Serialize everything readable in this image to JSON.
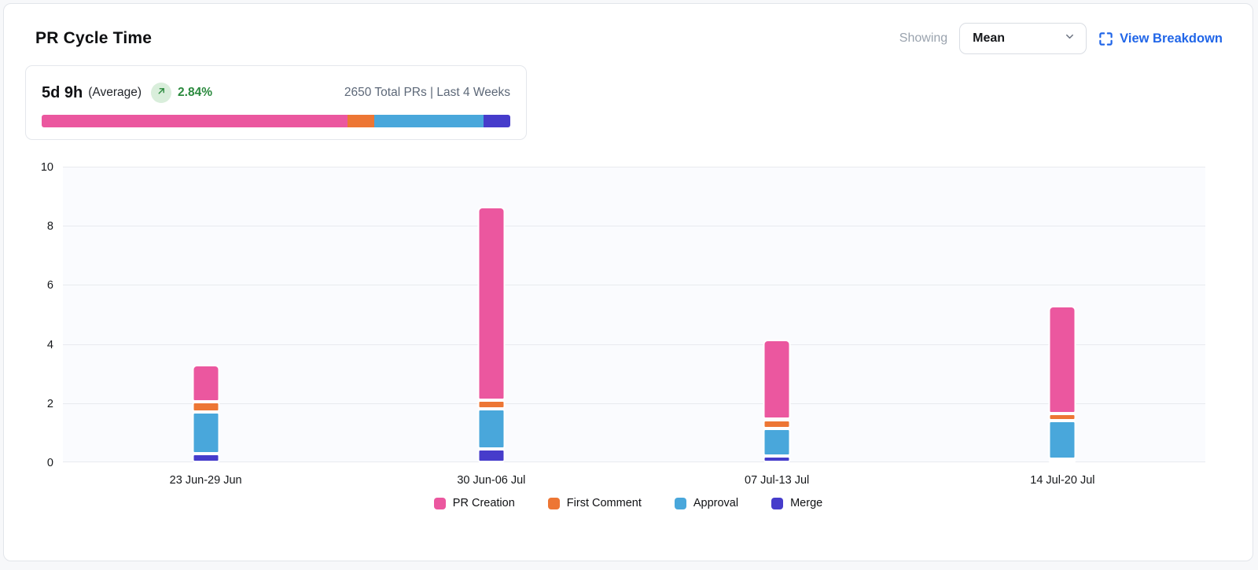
{
  "header": {
    "title": "PR Cycle Time",
    "showing_label": "Showing",
    "metric_dropdown": {
      "value": "Mean"
    },
    "view_breakdown_label": "View Breakdown"
  },
  "summary": {
    "value": "5d 9h",
    "value_suffix": "(Average)",
    "trend": {
      "direction": "up",
      "percent": "2.84%",
      "text_color": "#2B8A3E",
      "badge_bg": "#D9EEDB"
    },
    "meta": "2650 Total PRs | Last 4 Weeks",
    "distribution": [
      {
        "name": "PR Creation",
        "color": "#EB579F",
        "percent": 65.2
      },
      {
        "name": "First Comment",
        "color": "#ED7634",
        "percent": 5.8
      },
      {
        "name": "Approval",
        "color": "#49A7DB",
        "percent": 23.3
      },
      {
        "name": "Merge",
        "color": "#463CCB",
        "percent": 5.7
      }
    ]
  },
  "chart_data": {
    "type": "bar",
    "stacked": true,
    "title": "PR Cycle Time",
    "categories": [
      "23 Jun-29 Jun",
      "30 Jun-06 Jul",
      "07 Jul-13 Jul",
      "14 Jul-20 Jul"
    ],
    "series": [
      {
        "name": "PR Creation",
        "color": "#EB579F",
        "values": [
          1.25,
          6.55,
          2.7,
          3.65
        ]
      },
      {
        "name": "First Comment",
        "color": "#ED7634",
        "values": [
          0.35,
          0.3,
          0.3,
          0.25
        ]
      },
      {
        "name": "Approval",
        "color": "#49A7DB",
        "values": [
          1.4,
          1.35,
          0.95,
          1.3
        ]
      },
      {
        "name": "Merge",
        "color": "#463CCB",
        "values": [
          0.3,
          0.45,
          0.2,
          0.1
        ]
      }
    ],
    "stack_order_bottom_to_top": [
      "Merge",
      "Approval",
      "First Comment",
      "PR Creation"
    ],
    "bar_totals": [
      3.3,
      8.65,
      4.15,
      5.3
    ],
    "ylim": [
      0,
      10
    ],
    "yticks": [
      0,
      2,
      4,
      6,
      8,
      10
    ],
    "grid": true,
    "legend_position": "bottom",
    "accent_colors": {
      "link_blue": "#2166E8",
      "positive_green": "#2B8A3E"
    }
  }
}
